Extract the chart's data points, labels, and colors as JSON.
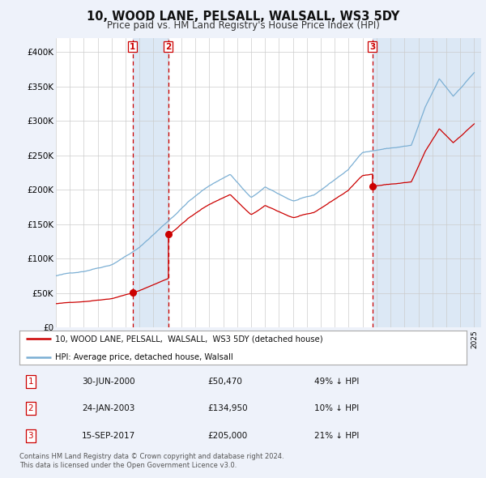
{
  "title": "10, WOOD LANE, PELSALL, WALSALL, WS3 5DY",
  "subtitle": "Price paid vs. HM Land Registry's House Price Index (HPI)",
  "xlim_start": 1995.0,
  "xlim_end": 2025.5,
  "ylim": [
    0,
    420000
  ],
  "yticks": [
    0,
    50000,
    100000,
    150000,
    200000,
    250000,
    300000,
    350000,
    400000
  ],
  "ytick_labels": [
    "£0",
    "£50K",
    "£100K",
    "£150K",
    "£200K",
    "£250K",
    "£300K",
    "£350K",
    "£400K"
  ],
  "sale_dates_num": [
    2000.496,
    2003.069,
    2017.706
  ],
  "sale_prices": [
    50470,
    134950,
    205000
  ],
  "sale_labels": [
    "1",
    "2",
    "3"
  ],
  "vline_color": "#cc0000",
  "sale_marker_color": "#cc0000",
  "hpi_line_color": "#7bafd4",
  "price_line_color": "#cc0000",
  "shade_color": "#dce8f5",
  "legend_entries": [
    "10, WOOD LANE, PELSALL,  WALSALL,  WS3 5DY (detached house)",
    "HPI: Average price, detached house, Walsall"
  ],
  "table_rows": [
    [
      "1",
      "30-JUN-2000",
      "£50,470",
      "49% ↓ HPI"
    ],
    [
      "2",
      "24-JAN-2003",
      "£134,950",
      "10% ↓ HPI"
    ],
    [
      "3",
      "15-SEP-2017",
      "£205,000",
      "21% ↓ HPI"
    ]
  ],
  "footnote": "Contains HM Land Registry data © Crown copyright and database right 2024.\nThis data is licensed under the Open Government Licence v3.0.",
  "bg_color": "#eef2fa",
  "plot_bg_color": "#ffffff",
  "grid_color": "#cccccc"
}
